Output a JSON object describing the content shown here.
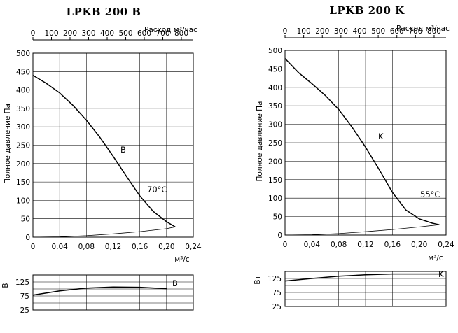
{
  "chart_data": [
    {
      "type": "line",
      "title": "LPKB 200 B",
      "ylabel": "Полное давление Па",
      "xlabel": "м³/с",
      "top_axis_label": "Расход м³/час",
      "xlim": [
        0,
        0.24
      ],
      "ylim": [
        0,
        500
      ],
      "x_ticks": [
        "0",
        "0,04",
        "0,08",
        "0,12",
        "0,16",
        "0,20",
        "0,24"
      ],
      "y_ticks": [
        "0",
        "50",
        "100",
        "150",
        "200",
        "250",
        "300",
        "350",
        "400",
        "450",
        "500"
      ],
      "top_ticks": [
        "0",
        "100",
        "200",
        "300",
        "400",
        "500",
        "600",
        "700",
        "800"
      ],
      "series": [
        {
          "name": "B",
          "x": [
            0,
            0.02,
            0.04,
            0.06,
            0.08,
            0.1,
            0.12,
            0.14,
            0.16,
            0.18,
            0.2,
            0.213
          ],
          "y": [
            440,
            418,
            392,
            358,
            318,
            272,
            220,
            165,
            112,
            70,
            42,
            28
          ]
        },
        {
          "x": [
            0,
            0.04,
            0.08,
            0.12,
            0.16,
            0.2,
            0.213
          ],
          "y": [
            0,
            1,
            4,
            9,
            15,
            23,
            28
          ]
        }
      ],
      "annotations": [
        "70°C"
      ],
      "power": {
        "ylabel": "Вт",
        "ylim": [
          25,
          150
        ],
        "y_ticks": [
          "25",
          "75",
          "125"
        ],
        "series": [
          {
            "name": "B",
            "x": [
              0,
              0.04,
              0.08,
              0.12,
              0.16,
              0.2
            ],
            "y": [
              78,
              93,
              103,
              107,
              106,
              101
            ]
          }
        ]
      }
    },
    {
      "type": "line",
      "title": "LPKB 200 K",
      "ylabel": "Полное давление Па",
      "xlabel": "м³/с",
      "top_axis_label": "Расход м³/час",
      "xlim": [
        0,
        0.24
      ],
      "ylim": [
        0,
        500
      ],
      "x_ticks": [
        "0",
        "0,04",
        "0,08",
        "0,12",
        "0,16",
        "0,20",
        "0,24"
      ],
      "y_ticks": [
        "0",
        "50",
        "100",
        "150",
        "200",
        "250",
        "300",
        "350",
        "400",
        "450",
        "500"
      ],
      "top_ticks": [
        "0",
        "100",
        "200",
        "300",
        "400",
        "500",
        "600",
        "700",
        "800"
      ],
      "series": [
        {
          "name": "K",
          "x": [
            0,
            0.02,
            0.04,
            0.06,
            0.08,
            0.1,
            0.12,
            0.14,
            0.16,
            0.18,
            0.2,
            0.22,
            0.23
          ],
          "y": [
            478,
            440,
            410,
            378,
            340,
            292,
            238,
            178,
            116,
            68,
            44,
            32,
            28
          ]
        },
        {
          "x": [
            0,
            0.04,
            0.08,
            0.12,
            0.16,
            0.2,
            0.23
          ],
          "y": [
            0,
            1,
            4,
            9,
            15,
            22,
            28
          ]
        }
      ],
      "annotations": [
        "55°C"
      ],
      "power": {
        "ylabel": "Вт",
        "ylim": [
          25,
          150
        ],
        "y_ticks": [
          "25",
          "75",
          "125"
        ],
        "series": [
          {
            "name": "K",
            "x": [
              0,
              0.04,
              0.08,
              0.12,
              0.16,
              0.2,
              0.23
            ],
            "y": [
              116,
              125,
              133,
              138,
              141,
              141,
              141
            ]
          }
        ]
      }
    }
  ]
}
